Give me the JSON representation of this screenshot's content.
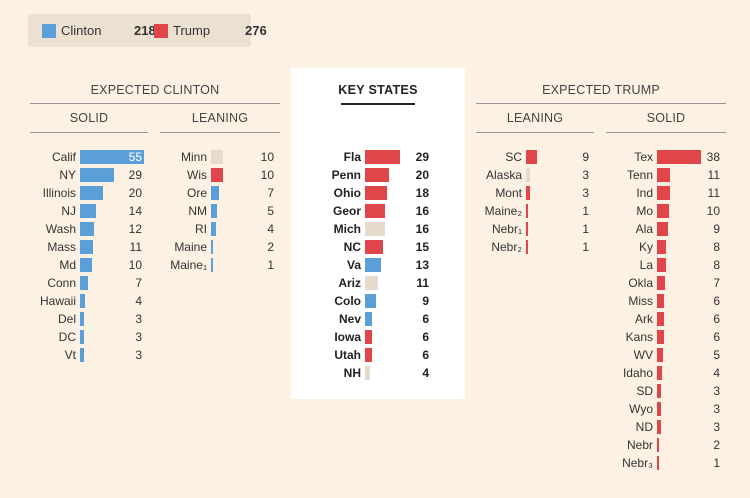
{
  "colors": {
    "clinton": "#5b9fd8",
    "trump": "#e0454a",
    "tossup": "#e6dbcd"
  },
  "legend": {
    "items": [
      {
        "label": "Clinton",
        "value": "218",
        "color": "#5b9fd8"
      },
      {
        "label": "Trump",
        "value": "276",
        "color": "#e0454a"
      }
    ]
  },
  "headers": {
    "expected_clinton": "EXPECTED CLINTON",
    "expected_trump": "EXPECTED TRUMP",
    "key_states": "KEY STATES",
    "solid": "SOLID",
    "leaning": "LEANING"
  },
  "chart_data": {
    "type": "bar",
    "groups": [
      {
        "id": "clinton-solid",
        "rows": [
          {
            "state": "Calif",
            "votes": 55,
            "party": "clinton"
          },
          {
            "state": "NY",
            "votes": 29,
            "party": "clinton"
          },
          {
            "state": "Illinois",
            "votes": 20,
            "party": "clinton"
          },
          {
            "state": "NJ",
            "votes": 14,
            "party": "clinton"
          },
          {
            "state": "Wash",
            "votes": 12,
            "party": "clinton"
          },
          {
            "state": "Mass",
            "votes": 11,
            "party": "clinton"
          },
          {
            "state": "Md",
            "votes": 10,
            "party": "clinton"
          },
          {
            "state": "Conn",
            "votes": 7,
            "party": "clinton"
          },
          {
            "state": "Hawaii",
            "votes": 4,
            "party": "clinton"
          },
          {
            "state": "Del",
            "votes": 3,
            "party": "clinton"
          },
          {
            "state": "DC",
            "votes": 3,
            "party": "clinton"
          },
          {
            "state": "Vt",
            "votes": 3,
            "party": "clinton"
          }
        ]
      },
      {
        "id": "clinton-leaning",
        "rows": [
          {
            "state": "Minn",
            "votes": 10,
            "party": "tossup"
          },
          {
            "state": "Wis",
            "votes": 10,
            "party": "trump"
          },
          {
            "state": "Ore",
            "votes": 7,
            "party": "clinton"
          },
          {
            "state": "NM",
            "votes": 5,
            "party": "clinton"
          },
          {
            "state": "RI",
            "votes": 4,
            "party": "clinton"
          },
          {
            "state": "Maine",
            "votes": 2,
            "party": "clinton"
          },
          {
            "state": "Maine₁",
            "votes": 1,
            "party": "clinton"
          }
        ]
      },
      {
        "id": "key-states",
        "rows": [
          {
            "state": "Fla",
            "votes": 29,
            "party": "trump"
          },
          {
            "state": "Penn",
            "votes": 20,
            "party": "trump"
          },
          {
            "state": "Ohio",
            "votes": 18,
            "party": "trump"
          },
          {
            "state": "Geor",
            "votes": 16,
            "party": "trump"
          },
          {
            "state": "Mich",
            "votes": 16,
            "party": "tossup"
          },
          {
            "state": "NC",
            "votes": 15,
            "party": "trump"
          },
          {
            "state": "Va",
            "votes": 13,
            "party": "clinton"
          },
          {
            "state": "Ariz",
            "votes": 11,
            "party": "tossup"
          },
          {
            "state": "Colo",
            "votes": 9,
            "party": "clinton"
          },
          {
            "state": "Nev",
            "votes": 6,
            "party": "clinton"
          },
          {
            "state": "Iowa",
            "votes": 6,
            "party": "trump"
          },
          {
            "state": "Utah",
            "votes": 6,
            "party": "trump"
          },
          {
            "state": "NH",
            "votes": 4,
            "party": "tossup"
          }
        ]
      },
      {
        "id": "trump-leaning",
        "rows": [
          {
            "state": "SC",
            "votes": 9,
            "party": "trump"
          },
          {
            "state": "Alaska",
            "votes": 3,
            "party": "tossup"
          },
          {
            "state": "Mont",
            "votes": 3,
            "party": "trump"
          },
          {
            "state": "Maine₂",
            "votes": 1,
            "party": "trump"
          },
          {
            "state": "Nebr₁",
            "votes": 1,
            "party": "trump"
          },
          {
            "state": "Nebr₂",
            "votes": 1,
            "party": "trump"
          }
        ]
      },
      {
        "id": "trump-solid",
        "rows": [
          {
            "state": "Tex",
            "votes": 38,
            "party": "trump"
          },
          {
            "state": "Tenn",
            "votes": 11,
            "party": "trump"
          },
          {
            "state": "Ind",
            "votes": 11,
            "party": "trump"
          },
          {
            "state": "Mo",
            "votes": 10,
            "party": "trump"
          },
          {
            "state": "Ala",
            "votes": 9,
            "party": "trump"
          },
          {
            "state": "Ky",
            "votes": 8,
            "party": "trump"
          },
          {
            "state": "La",
            "votes": 8,
            "party": "trump"
          },
          {
            "state": "Okla",
            "votes": 7,
            "party": "trump"
          },
          {
            "state": "Miss",
            "votes": 6,
            "party": "trump"
          },
          {
            "state": "Ark",
            "votes": 6,
            "party": "trump"
          },
          {
            "state": "Kans",
            "votes": 6,
            "party": "trump"
          },
          {
            "state": "WV",
            "votes": 5,
            "party": "trump"
          },
          {
            "state": "Idaho",
            "votes": 4,
            "party": "trump"
          },
          {
            "state": "SD",
            "votes": 3,
            "party": "trump"
          },
          {
            "state": "Wyo",
            "votes": 3,
            "party": "trump"
          },
          {
            "state": "ND",
            "votes": 3,
            "party": "trump"
          },
          {
            "state": "Nebr",
            "votes": 2,
            "party": "trump"
          },
          {
            "state": "Nebr₃",
            "votes": 1,
            "party": "trump"
          }
        ]
      }
    ]
  }
}
